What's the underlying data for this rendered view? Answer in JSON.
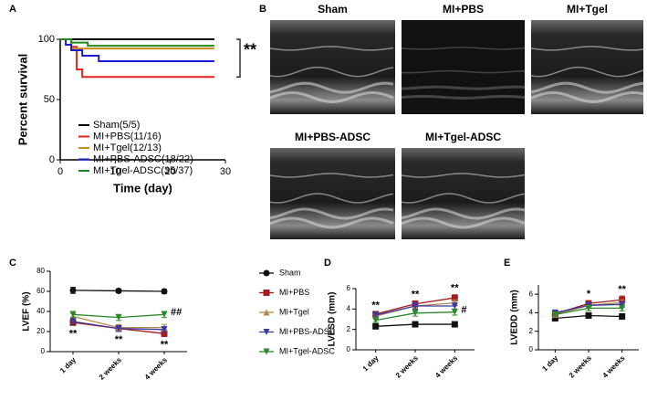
{
  "chart_data": [
    {
      "type": "step",
      "panel": "A",
      "ylabel": "Percent survival",
      "xlabel": "Time (day)",
      "xlim": [
        0,
        30
      ],
      "xticks": [
        0,
        10,
        20,
        30
      ],
      "ylim": [
        0,
        100
      ],
      "yticks": [
        0,
        50,
        100
      ],
      "legend": "inside",
      "annotation": "**",
      "series": [
        {
          "name": "Sham(5/5)",
          "color": "#000000",
          "x": [
            0,
            28
          ],
          "values": [
            100,
            100
          ]
        },
        {
          "name": "MI+PBS(11/16)",
          "color": "#e8231f",
          "x": [
            0,
            2,
            3,
            4,
            28
          ],
          "values": [
            100,
            93.75,
            75,
            68.75,
            68.75
          ]
        },
        {
          "name": "MI+Tgel(12/13)",
          "color": "#d4891a",
          "x": [
            0,
            2,
            28
          ],
          "values": [
            100,
            92.3,
            92.3
          ]
        },
        {
          "name": "MI+PBS-ADSC(18/22)",
          "color": "#1b1bd6",
          "x": [
            0,
            1,
            2,
            4,
            7,
            28
          ],
          "values": [
            100,
            95.5,
            90.9,
            86.4,
            81.8,
            81.8
          ]
        },
        {
          "name": "MI+Tgel-ADSC(35/37)",
          "color": "#1f8a1f",
          "x": [
            0,
            2,
            5,
            28
          ],
          "values": [
            100,
            97.3,
            94.6,
            94.6
          ]
        }
      ]
    },
    {
      "type": "line",
      "panel": "C",
      "ylabel": "LVEF (%)",
      "categories": [
        "1 day",
        "2 weeks",
        "4 weeks"
      ],
      "ylim": [
        0,
        80
      ],
      "yticks": [
        0,
        20,
        40,
        60,
        80
      ],
      "legend": "right",
      "series": [
        {
          "name": "Sham",
          "color": "#111111",
          "marker": "circle",
          "values": [
            61,
            60.5,
            60
          ],
          "errors": [
            3,
            2,
            2
          ]
        },
        {
          "name": "MI+PBS",
          "color": "#a51c1c",
          "marker": "square",
          "values": [
            29,
            23,
            18
          ],
          "errors": [
            3,
            3,
            3
          ]
        },
        {
          "name": "MI+Tgel",
          "color": "#b5874a",
          "marker": "triangle",
          "values": [
            35,
            24,
            24
          ],
          "errors": [
            3,
            3,
            3
          ]
        },
        {
          "name": "MI+PBS-ADSC",
          "color": "#3a3aa0",
          "marker": "triangle-down",
          "values": [
            30,
            23,
            22
          ],
          "errors": [
            3,
            3,
            3
          ]
        },
        {
          "name": "MI+Tgel-ADSC",
          "color": "#2a8a2a",
          "marker": "triangle-down",
          "values": [
            37,
            34,
            37
          ],
          "errors": [
            3,
            3,
            3
          ]
        }
      ],
      "annotations": [
        {
          "text": "**",
          "color": "#e02020",
          "category": "1 day",
          "side": "below"
        },
        {
          "text": "**",
          "color": "#e02020",
          "category": "2 weeks",
          "side": "below"
        },
        {
          "text": "**",
          "color": "#e02020",
          "category": "4 weeks",
          "side": "below"
        },
        {
          "text": "##",
          "color": "#2a8a2a",
          "category": "4 weeks",
          "side": "right"
        }
      ]
    },
    {
      "type": "line",
      "panel": "D",
      "ylabel": "LVESD (mm)",
      "categories": [
        "1 day",
        "2 weeks",
        "4 weeks"
      ],
      "ylim": [
        0,
        6
      ],
      "yticks": [
        0,
        2,
        4,
        6
      ],
      "series": [
        {
          "color": "#111111",
          "marker": "square",
          "values": [
            2.3,
            2.5,
            2.5
          ],
          "errors": [
            0.1,
            0.1,
            0.1
          ]
        },
        {
          "color": "#a51c1c",
          "marker": "square",
          "values": [
            3.5,
            4.5,
            5.1
          ],
          "errors": [
            0.2,
            0.3,
            0.3
          ]
        },
        {
          "color": "#b5874a",
          "marker": "triangle",
          "values": [
            3.3,
            4.3,
            4.6
          ],
          "errors": [
            0.2,
            0.3,
            0.3
          ]
        },
        {
          "color": "#3a3aa0",
          "marker": "triangle-down",
          "values": [
            3.4,
            4.3,
            4.3
          ],
          "errors": [
            0.2,
            0.3,
            0.3
          ]
        },
        {
          "color": "#2a8a2a",
          "marker": "triangle-down",
          "values": [
            2.9,
            3.6,
            3.7
          ],
          "errors": [
            0.2,
            0.3,
            0.3
          ]
        }
      ],
      "annotations": [
        {
          "text": "**",
          "color": "#e02020",
          "category": "1 day",
          "side": "above"
        },
        {
          "text": "**",
          "color": "#e02020",
          "category": "2 weeks",
          "side": "above"
        },
        {
          "text": "**",
          "color": "#e02020",
          "category": "4 weeks",
          "side": "above"
        },
        {
          "text": "#",
          "color": "#2a8a2a",
          "category": "4 weeks",
          "side": "right"
        }
      ]
    },
    {
      "type": "line",
      "panel": "E",
      "ylabel": "LVEDD (mm)",
      "categories": [
        "1 day",
        "2 weeks",
        "4 weeks"
      ],
      "ylim": [
        0,
        7
      ],
      "yticks": [
        0,
        2,
        4,
        6
      ],
      "series": [
        {
          "color": "#111111",
          "marker": "square",
          "values": [
            3.4,
            3.7,
            3.6
          ],
          "errors": [
            0.1,
            0.1,
            0.1
          ]
        },
        {
          "color": "#a51c1c",
          "marker": "square",
          "values": [
            3.9,
            5.0,
            5.4
          ],
          "errors": [
            0.2,
            0.3,
            0.4
          ]
        },
        {
          "color": "#b5874a",
          "marker": "triangle",
          "values": [
            3.8,
            4.8,
            5.1
          ],
          "errors": [
            0.2,
            0.3,
            0.3
          ]
        },
        {
          "color": "#3a3aa0",
          "marker": "triangle-down",
          "values": [
            4.0,
            4.8,
            4.9
          ],
          "errors": [
            0.2,
            0.3,
            0.3
          ]
        },
        {
          "color": "#2a8a2a",
          "marker": "triangle-down",
          "values": [
            3.8,
            4.5,
            4.5
          ],
          "errors": [
            0.2,
            0.3,
            0.3
          ]
        }
      ],
      "annotations": [
        {
          "text": "*",
          "color": "#e02020",
          "category": "2 weeks",
          "side": "above"
        },
        {
          "text": "**",
          "color": "#e02020",
          "category": "4 weeks",
          "side": "above"
        }
      ]
    }
  ],
  "image_panel": {
    "panel": "B",
    "images": [
      "Sham",
      "MI+PBS",
      "MI+Tgel",
      "MI+PBS-ADSC",
      "MI+Tgel-ADSC"
    ]
  }
}
